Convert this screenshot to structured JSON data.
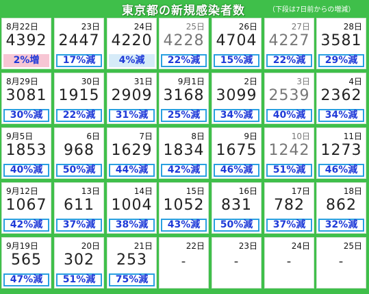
{
  "title": "東京都の新規感染者数",
  "note": "（下段は7日前からの増減）",
  "rows": [
    [
      {
        "date": "8月22日",
        "count": "4392",
        "pct": "2%増",
        "style": "pink"
      },
      {
        "date": "23日",
        "count": "2447",
        "pct": "17%減",
        "style": "plain"
      },
      {
        "date": "24日",
        "count": "4220",
        "pct": "4%減",
        "style": "lightblue"
      },
      {
        "date": "25日",
        "count": "4228",
        "pct": "22%減",
        "style": "plain",
        "gray": true
      },
      {
        "date": "26日",
        "count": "4704",
        "pct": "15%減",
        "style": "plain"
      },
      {
        "date": "27日",
        "count": "4227",
        "pct": "22%減",
        "style": "plain",
        "gray": true
      },
      {
        "date": "28日",
        "count": "3581",
        "pct": "29%減",
        "style": "plain"
      }
    ],
    [
      {
        "date": "8月29日",
        "count": "3081",
        "pct": "30%減",
        "style": "plain"
      },
      {
        "date": "30日",
        "count": "1915",
        "pct": "22%減",
        "style": "plain"
      },
      {
        "date": "31日",
        "count": "2909",
        "pct": "31%減",
        "style": "plain"
      },
      {
        "date": "9月1日",
        "count": "3168",
        "pct": "25%減",
        "style": "plain"
      },
      {
        "date": "2日",
        "count": "3099",
        "pct": "34%減",
        "style": "plain"
      },
      {
        "date": "3日",
        "count": "2539",
        "pct": "40%減",
        "style": "plain",
        "gray": true
      },
      {
        "date": "4日",
        "count": "2362",
        "pct": "34%減",
        "style": "plain"
      }
    ],
    [
      {
        "date": "9月5日",
        "count": "1853",
        "pct": "40%減",
        "style": "plain"
      },
      {
        "date": "6日",
        "count": "968",
        "pct": "50%減",
        "style": "plain"
      },
      {
        "date": "7日",
        "count": "1629",
        "pct": "44%減",
        "style": "plain"
      },
      {
        "date": "8日",
        "count": "1834",
        "pct": "42%減",
        "style": "plain"
      },
      {
        "date": "9日",
        "count": "1675",
        "pct": "46%減",
        "style": "plain"
      },
      {
        "date": "10日",
        "count": "1242",
        "pct": "51%減",
        "style": "plain",
        "gray": true
      },
      {
        "date": "11日",
        "count": "1273",
        "pct": "46%減",
        "style": "plain"
      }
    ],
    [
      {
        "date": "9月12日",
        "count": "1067",
        "pct": "42%減",
        "style": "plain"
      },
      {
        "date": "13日",
        "count": "611",
        "pct": "37%減",
        "style": "plain"
      },
      {
        "date": "14日",
        "count": "1004",
        "pct": "38%減",
        "style": "plain"
      },
      {
        "date": "15日",
        "count": "1052",
        "pct": "43%減",
        "style": "plain"
      },
      {
        "date": "16日",
        "count": "831",
        "pct": "50%減",
        "style": "plain"
      },
      {
        "date": "17日",
        "count": "782",
        "pct": "37%減",
        "style": "plain"
      },
      {
        "date": "18日",
        "count": "862",
        "pct": "32%減",
        "style": "plain"
      }
    ],
    [
      {
        "date": "9月19日",
        "count": "565",
        "pct": "47%減",
        "style": "plain"
      },
      {
        "date": "20日",
        "count": "302",
        "pct": "51%減",
        "style": "plain"
      },
      {
        "date": "21日",
        "count": "253",
        "pct": "75%減",
        "style": "plain"
      },
      {
        "date": "22日",
        "count": "-",
        "pct": "",
        "style": "none"
      },
      {
        "date": "23日",
        "count": "-",
        "pct": "",
        "style": "none"
      },
      {
        "date": "24日",
        "count": "-",
        "pct": "",
        "style": "none"
      },
      {
        "date": "25日",
        "count": "-",
        "pct": "",
        "style": "none"
      }
    ]
  ],
  "colors": {
    "background": "#3fbf4a",
    "pct_text": "#1f3ad8",
    "pct_border": "#29a0e0",
    "increase_fill": "#f7c6d4"
  }
}
